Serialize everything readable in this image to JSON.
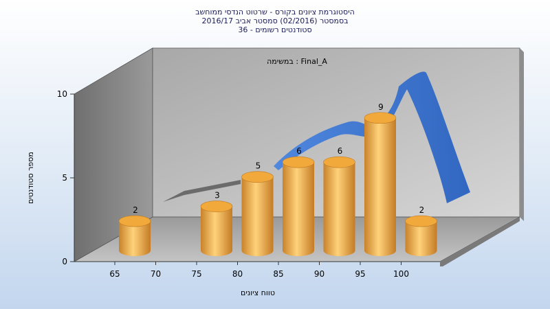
{
  "chart_data": {
    "type": "bar",
    "title_lines": [
      "היסטוגרמת ציונים בקורס - שרטוט הנדסי ממוחשב",
      "בסמסטר  (02/2016)  סמסטר אביב 2016/17",
      "סטודנטים רשומים - 36"
    ],
    "annotation": "במשימה : Final_A",
    "xlabel": "טווח ציונים",
    "ylabel": "מספר סטודנטים",
    "x_ticks": [
      "65",
      "70",
      "75",
      "80",
      "85",
      "90",
      "95",
      "100"
    ],
    "y_ticks": [
      "0",
      "5",
      "10"
    ],
    "ylim": [
      0,
      10
    ],
    "bars": [
      {
        "label": "65",
        "value": 2
      },
      {
        "label": "75",
        "value": 3
      },
      {
        "label": "80",
        "value": 5
      },
      {
        "label": "85",
        "value": 6
      },
      {
        "label": "90",
        "value": 6
      },
      {
        "label": "95",
        "value": 9
      },
      {
        "label": "100",
        "value": 2
      }
    ],
    "grid": false,
    "colors": {
      "bar": "#e8a23c",
      "trend": "#2f6fd0",
      "trend_shadow": "#6b6b6b",
      "wall": "#bdbdbd",
      "side_wall": "#8a8a8a"
    }
  }
}
